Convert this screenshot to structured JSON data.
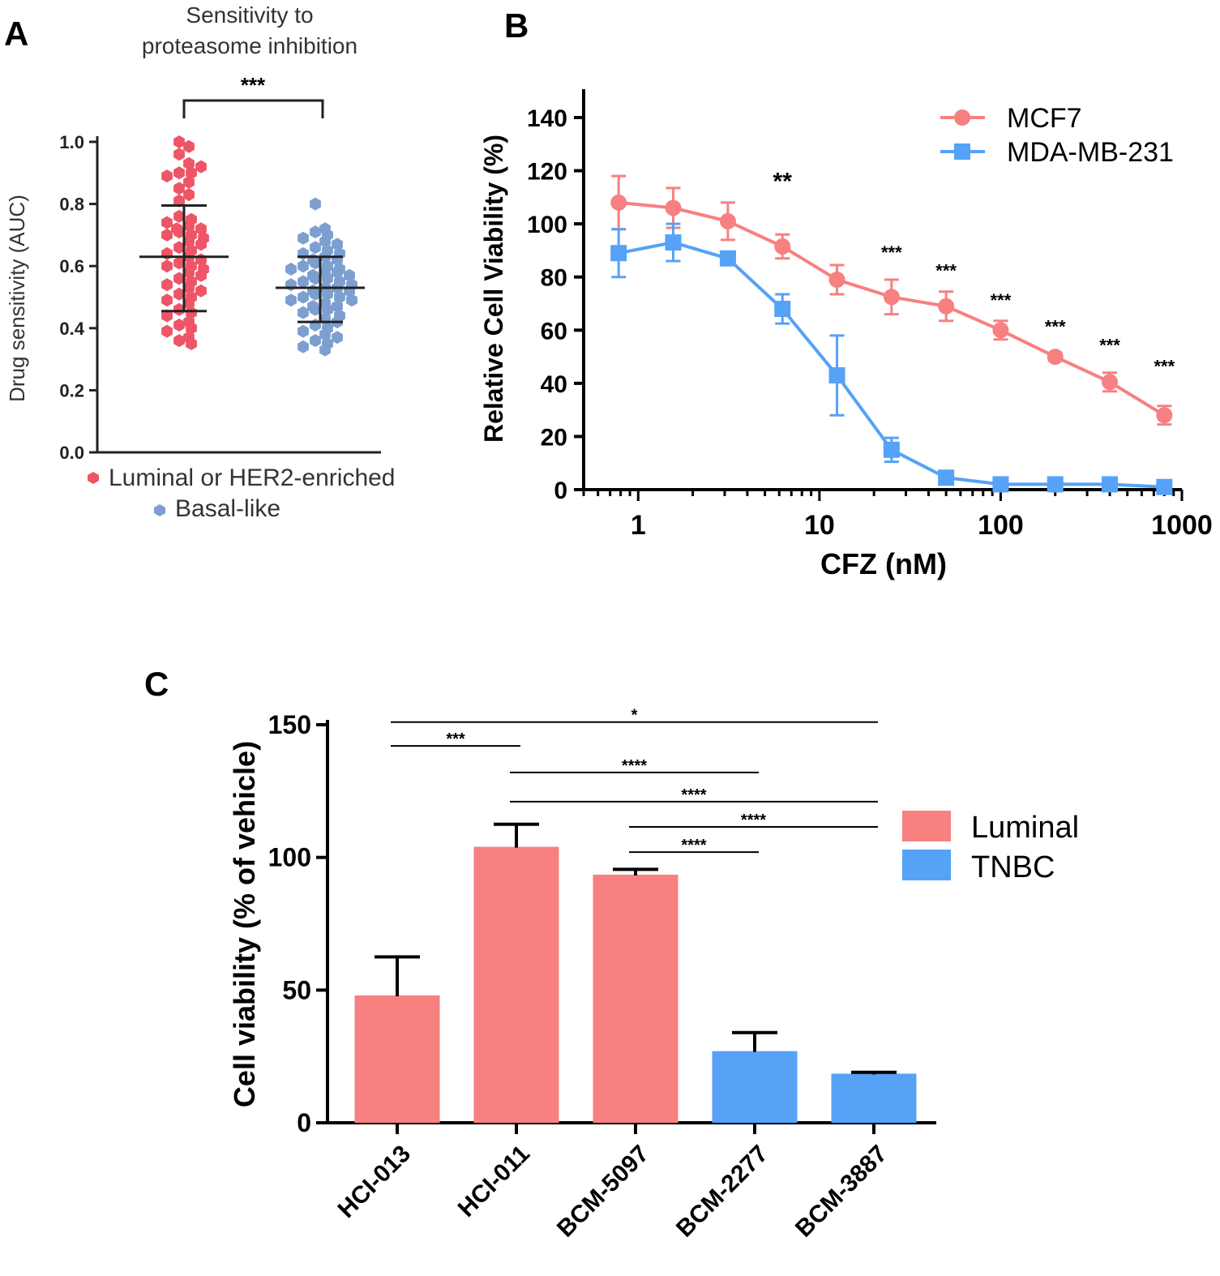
{
  "colors": {
    "red": "#f78080",
    "blue": "#55a2f7",
    "dotRed": "#ee5566",
    "dotBlue": "#7d9fd0"
  },
  "chart_data": [
    {
      "panel": "A",
      "type": "scatter",
      "title_line1": "Sensitivity to",
      "title_line2": "proteasome inhibition",
      "ylabel": "Drug sensitivity  (AUC)",
      "ylim": [
        0,
        1.0
      ],
      "yticks": [
        "0.0",
        "0.2",
        "0.4",
        "0.6",
        "0.8",
        "1.0"
      ],
      "significance": "***",
      "groups": [
        {
          "name": "Luminal or HER2-enriched",
          "color": "#ee5566",
          "mean": 0.63,
          "sd_low": 0.455,
          "sd_high": 0.795,
          "values": [
            1.0,
            0.985,
            0.96,
            0.93,
            0.92,
            0.9,
            0.9,
            0.89,
            0.87,
            0.85,
            0.83,
            0.81,
            0.76,
            0.75,
            0.74,
            0.73,
            0.72,
            0.72,
            0.71,
            0.7,
            0.7,
            0.69,
            0.68,
            0.67,
            0.66,
            0.65,
            0.64,
            0.63,
            0.62,
            0.61,
            0.6,
            0.6,
            0.59,
            0.58,
            0.57,
            0.56,
            0.55,
            0.54,
            0.53,
            0.52,
            0.51,
            0.5,
            0.49,
            0.48,
            0.46,
            0.45,
            0.44,
            0.42,
            0.41,
            0.4,
            0.39,
            0.37,
            0.36,
            0.35
          ]
        },
        {
          "name": "Basal-like",
          "color": "#7d9fd0",
          "mean": 0.53,
          "sd_low": 0.42,
          "sd_high": 0.63,
          "values": [
            0.8,
            0.72,
            0.71,
            0.7,
            0.69,
            0.68,
            0.67,
            0.66,
            0.65,
            0.64,
            0.64,
            0.63,
            0.62,
            0.62,
            0.61,
            0.6,
            0.6,
            0.59,
            0.59,
            0.58,
            0.58,
            0.57,
            0.57,
            0.56,
            0.56,
            0.55,
            0.55,
            0.54,
            0.54,
            0.53,
            0.53,
            0.52,
            0.52,
            0.51,
            0.51,
            0.5,
            0.5,
            0.49,
            0.49,
            0.48,
            0.47,
            0.47,
            0.46,
            0.46,
            0.45,
            0.44,
            0.43,
            0.42,
            0.41,
            0.4,
            0.39,
            0.38,
            0.37,
            0.36,
            0.35,
            0.34,
            0.33
          ]
        }
      ]
    },
    {
      "panel": "B",
      "type": "line",
      "xlabel": "CFZ (nM)",
      "ylabel": "Relative Cell Viability (%)",
      "xscale": "log",
      "xlim": [
        0.5,
        1000
      ],
      "ylim": [
        0,
        150
      ],
      "xticks": [
        "1",
        "10",
        "100",
        "1000"
      ],
      "yticks": [
        "0",
        "20",
        "40",
        "60",
        "80",
        "100",
        "120",
        "140"
      ],
      "x": [
        0.78,
        1.56,
        3.125,
        6.25,
        12.5,
        25,
        50,
        100,
        200,
        400,
        800
      ],
      "series": [
        {
          "name": "MCF7",
          "color": "#f78080",
          "marker": "circle",
          "values": [
            108,
            106,
            101,
            91.5,
            79,
            72.5,
            69,
            60,
            50,
            40.5,
            28
          ],
          "errors": [
            10,
            7.5,
            7,
            4.5,
            5.5,
            6.5,
            5.5,
            3.5,
            1.5,
            3.5,
            3.5
          ]
        },
        {
          "name": "MDA-MB-231",
          "color": "#55a2f7",
          "marker": "square",
          "values": [
            89,
            93,
            87,
            68,
            43,
            15,
            4.5,
            2,
            2,
            2,
            1
          ],
          "errors": [
            9,
            7,
            2,
            5.5,
            15,
            4.5,
            2.5,
            1.5,
            1.5,
            1.5,
            1
          ]
        }
      ],
      "annotations": [
        {
          "x": 6.25,
          "y": 113,
          "text": "**"
        },
        {
          "x": 25,
          "y": 87,
          "text": "***"
        },
        {
          "x": 50,
          "y": 80,
          "text": "***"
        },
        {
          "x": 100,
          "y": 69,
          "text": "***"
        },
        {
          "x": 200,
          "y": 59,
          "text": "***"
        },
        {
          "x": 400,
          "y": 52,
          "text": "***"
        },
        {
          "x": 800,
          "y": 44,
          "text": "***"
        }
      ]
    },
    {
      "panel": "C",
      "type": "bar",
      "ylabel": "Cell viability (% of vehicle)",
      "ylim": [
        0,
        150
      ],
      "yticks": [
        "0",
        "50",
        "100",
        "150"
      ],
      "categories": [
        "HCI-013",
        "HCI-011",
        "BCM-5097",
        "BCM-2277",
        "BCM-3887"
      ],
      "values": [
        48,
        104,
        93.5,
        27,
        18.5
      ],
      "errors": [
        14.5,
        8.5,
        2,
        7,
        0.5
      ],
      "groups": [
        "Luminal",
        "Luminal",
        "Luminal",
        "TNBC",
        "TNBC"
      ],
      "legend": [
        {
          "name": "Luminal",
          "color": "#f78080"
        },
        {
          "name": "TNBC",
          "color": "#55a2f7"
        }
      ],
      "comparisons": [
        {
          "from": 0,
          "to": 4,
          "y": 151,
          "text": "*"
        },
        {
          "from": 0,
          "to": 1,
          "y": 142,
          "text": "***"
        },
        {
          "from": 1,
          "to": 3,
          "y": 132,
          "text": "****"
        },
        {
          "from": 1,
          "to": 4,
          "y": 121,
          "text": "****"
        },
        {
          "from": 2,
          "to": 4,
          "y": 111.5,
          "text": "****"
        },
        {
          "from": 2,
          "to": 3,
          "y": 102,
          "text": "****"
        }
      ]
    }
  ]
}
